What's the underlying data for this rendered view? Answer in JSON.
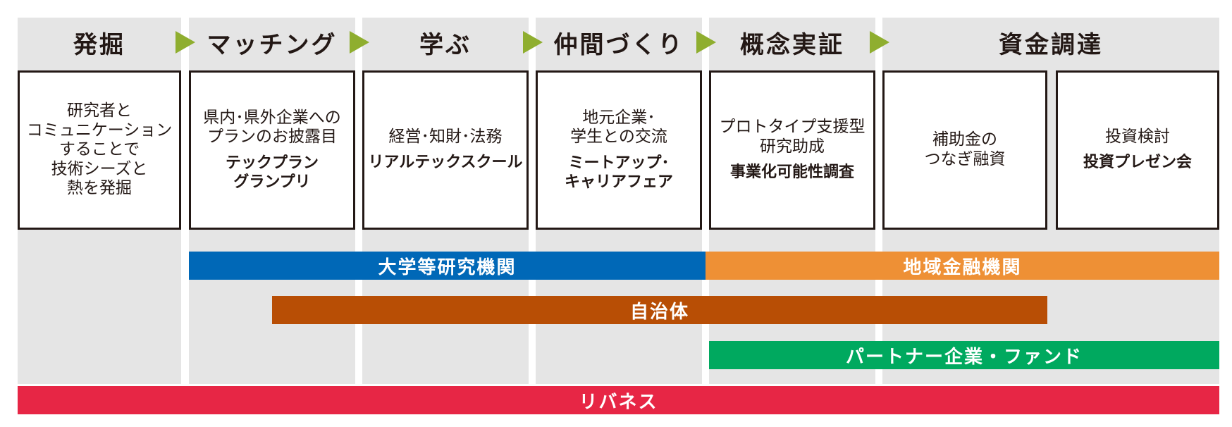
{
  "stages": [
    {
      "label": "発掘"
    },
    {
      "label": "マッチング"
    },
    {
      "label": "学ぶ"
    },
    {
      "label": "仲間づくり"
    },
    {
      "label": "概念実証"
    },
    {
      "label": "資金調達"
    }
  ],
  "boxes": [
    {
      "desc": "研究者と\nコミュニケーション\nすることで\n技術シーズと\n熱を発掘",
      "program": ""
    },
    {
      "desc": "県内･県外企業への\nプランのお披露目",
      "program": "テックプラン\nグランプリ"
    },
    {
      "desc": "経営･知財･法務",
      "program": "リアルテックスクール"
    },
    {
      "desc": "地元企業･\n学生との交流",
      "program": "ミートアップ･\nキャリアフェア"
    },
    {
      "desc": "プロトタイプ支援型\n研究助成",
      "program": "事業化可能性調査"
    },
    {
      "desc": "補助金の\nつなぎ融資",
      "program": ""
    },
    {
      "desc": "投資検討",
      "program": "投資プレゼン会"
    }
  ],
  "bars": [
    {
      "label": "大学等研究機関",
      "color": "#0068b7"
    },
    {
      "label": "地域金融機関",
      "color": "#ee9035"
    },
    {
      "label": "自治体",
      "color": "#b84e05"
    },
    {
      "label": "パートナー企業・ファンド",
      "color": "#00a95f"
    },
    {
      "label": "リバネス",
      "color": "#e72645"
    }
  ],
  "colors": {
    "arrow": "#8fae2f",
    "column_bg": "#e5e5e5",
    "border": "#231815"
  }
}
